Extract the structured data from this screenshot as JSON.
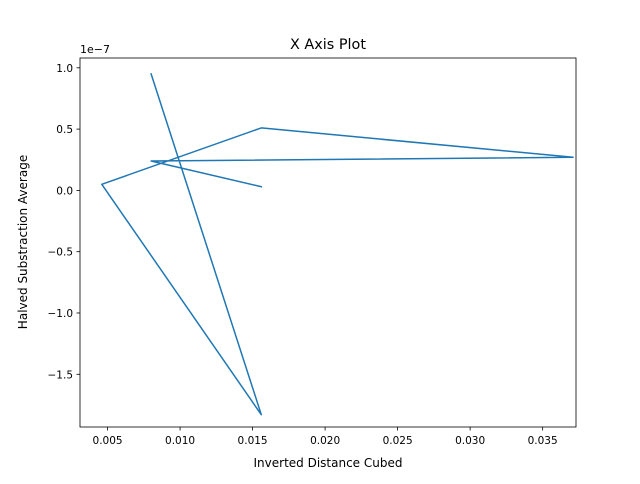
{
  "chart_data": {
    "type": "line",
    "title": "X Axis Plot",
    "xlabel": "Inverted Distance Cubed",
    "ylabel": "Halved Substraction Average",
    "y_offset_text": "1e−7",
    "xlim": [
      0.0031,
      0.0373
    ],
    "ylim": [
      -1.93e-07,
      1.08e-07
    ],
    "x_ticks": [
      0.005,
      0.01,
      0.015,
      0.02,
      0.025,
      0.03,
      0.035
    ],
    "x_tick_labels": [
      "0.005",
      "0.010",
      "0.015",
      "0.020",
      "0.025",
      "0.030",
      "0.035"
    ],
    "y_ticks": [
      -1.5e-07,
      -1e-07,
      -5e-08,
      0.0,
      5e-08,
      1e-07
    ],
    "y_tick_labels": [
      "−1.5",
      "−1.0",
      "−0.5",
      "0.0",
      "0.5",
      "1.0"
    ],
    "grid": false,
    "series": [
      {
        "color": "#1f77b4",
        "x": [
          0.008,
          0.0156,
          0.0046,
          0.0156,
          0.0371,
          0.008,
          0.0156
        ],
        "y": [
          9.5e-08,
          -1.83e-07,
          5e-09,
          5.1e-08,
          2.7e-08,
          2.4e-08,
          3e-09
        ]
      }
    ]
  }
}
